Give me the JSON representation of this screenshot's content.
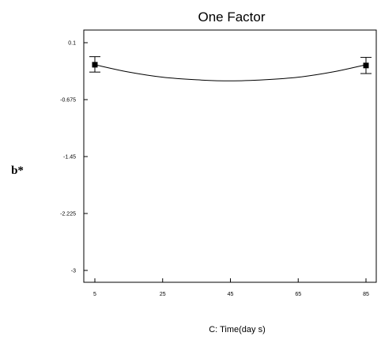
{
  "chart_data": {
    "type": "line",
    "title": "One Factor",
    "xlabel": "C: Time(day s)",
    "ylabel": "b*",
    "xlim": [
      5,
      85
    ],
    "ylim": [
      -3,
      0.1
    ],
    "x_ticks": [
      "5",
      "25",
      "45",
      "65",
      "85"
    ],
    "y_ticks": [
      "0.1",
      "-0.675",
      "-1.45",
      "-2.225",
      "-3"
    ],
    "curve": {
      "x": [
        5,
        15,
        25,
        35,
        45,
        55,
        65,
        75,
        85
      ],
      "y": [
        -0.2,
        -0.3,
        -0.37,
        -0.405,
        -0.42,
        -0.405,
        -0.37,
        -0.3,
        -0.2
      ]
    },
    "design_points": [
      {
        "x": 5,
        "y": -0.2,
        "error_low": -0.3,
        "error_high": -0.09
      },
      {
        "x": 85,
        "y": -0.21,
        "error_low": -0.32,
        "error_high": -0.1
      }
    ],
    "grid": false,
    "legend": "none"
  }
}
